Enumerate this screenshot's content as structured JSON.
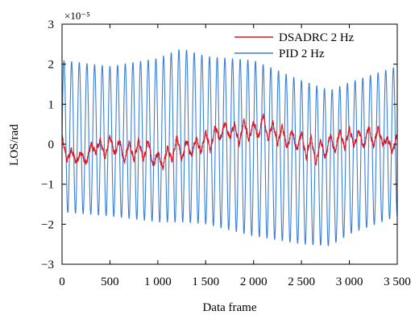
{
  "chart_data": {
    "type": "line",
    "title": "",
    "xlabel": "Data frame",
    "ylabel": "LOS/rad",
    "y_multiplier_label": "×10⁻⁵",
    "xlim": [
      0,
      3500
    ],
    "ylim": [
      -3,
      3
    ],
    "x_ticks": [
      0,
      500,
      1000,
      1500,
      2000,
      2500,
      3000,
      3500
    ],
    "x_tick_labels": [
      "0",
      "500",
      "1 000",
      "1 500",
      "2 000",
      "2 500",
      "3 000",
      "3 500"
    ],
    "y_ticks": [
      -3,
      -2,
      -1,
      0,
      1,
      2,
      3
    ],
    "y_tick_labels": [
      "−3",
      "−2",
      "−1",
      "0",
      "1",
      "2",
      "3"
    ],
    "grid": false,
    "legend_position": "top-right",
    "series": [
      {
        "name": "DSADRC 2 Hz",
        "color": "#e0161f",
        "description": "small-amplitude oscillation roughly ±0.5e-5 around a slowly varying mean",
        "points": [
          [
            0,
            0.2
          ],
          [
            50,
            -0.4
          ],
          [
            100,
            -0.15
          ],
          [
            150,
            -0.45
          ],
          [
            200,
            -0.2
          ],
          [
            250,
            -0.5
          ],
          [
            300,
            0.0
          ],
          [
            350,
            -0.2
          ],
          [
            400,
            0.1
          ],
          [
            450,
            -0.35
          ],
          [
            500,
            0.2
          ],
          [
            550,
            -0.25
          ],
          [
            600,
            0.1
          ],
          [
            650,
            -0.45
          ],
          [
            700,
            0.05
          ],
          [
            750,
            -0.4
          ],
          [
            800,
            0.1
          ],
          [
            850,
            -0.4
          ],
          [
            900,
            0.1
          ],
          [
            950,
            -0.55
          ],
          [
            1000,
            -0.2
          ],
          [
            1050,
            -0.6
          ],
          [
            1100,
            -0.1
          ],
          [
            1150,
            -0.4
          ],
          [
            1200,
            0.2
          ],
          [
            1250,
            -0.4
          ],
          [
            1300,
            0.1
          ],
          [
            1350,
            -0.3
          ],
          [
            1400,
            0.15
          ],
          [
            1450,
            -0.2
          ],
          [
            1500,
            0.3
          ],
          [
            1550,
            -0.15
          ],
          [
            1600,
            0.45
          ],
          [
            1650,
            0.1
          ],
          [
            1700,
            0.55
          ],
          [
            1750,
            0.15
          ],
          [
            1800,
            0.5
          ],
          [
            1850,
            0.0
          ],
          [
            1900,
            0.6
          ],
          [
            1950,
            0.1
          ],
          [
            2000,
            0.55
          ],
          [
            2050,
            0.15
          ],
          [
            2100,
            0.75
          ],
          [
            2150,
            0.1
          ],
          [
            2200,
            0.55
          ],
          [
            2250,
            0.0
          ],
          [
            2300,
            0.45
          ],
          [
            2350,
            -0.1
          ],
          [
            2400,
            0.35
          ],
          [
            2450,
            -0.15
          ],
          [
            2500,
            0.3
          ],
          [
            2550,
            -0.35
          ],
          [
            2600,
            0.2
          ],
          [
            2650,
            -0.5
          ],
          [
            2700,
            0.1
          ],
          [
            2750,
            -0.35
          ],
          [
            2800,
            0.25
          ],
          [
            2850,
            -0.2
          ],
          [
            2900,
            0.35
          ],
          [
            2950,
            -0.1
          ],
          [
            3000,
            0.4
          ],
          [
            3050,
            -0.05
          ],
          [
            3100,
            0.35
          ],
          [
            3150,
            -0.1
          ],
          [
            3200,
            0.45
          ],
          [
            3250,
            -0.05
          ],
          [
            3300,
            0.4
          ],
          [
            3350,
            0.0
          ],
          [
            3400,
            0.15
          ],
          [
            3450,
            -0.2
          ],
          [
            3500,
            0.25
          ]
        ]
      },
      {
        "name": "PID 2 Hz",
        "color": "#3a7fd5",
        "description": "large-amplitude sinusoid with period about 80 data frames",
        "period": 80,
        "envelope": {
          "x": [
            0,
            500,
            1000,
            1250,
            1500,
            2000,
            2500,
            2800,
            3000,
            3500
          ],
          "max": [
            2.1,
            1.95,
            2.15,
            2.4,
            2.2,
            2.1,
            1.6,
            1.35,
            1.55,
            1.95
          ],
          "min": [
            -1.7,
            -1.8,
            -1.95,
            -1.95,
            -2.0,
            -2.3,
            -2.5,
            -2.55,
            -2.25,
            -1.8
          ]
        }
      }
    ]
  }
}
